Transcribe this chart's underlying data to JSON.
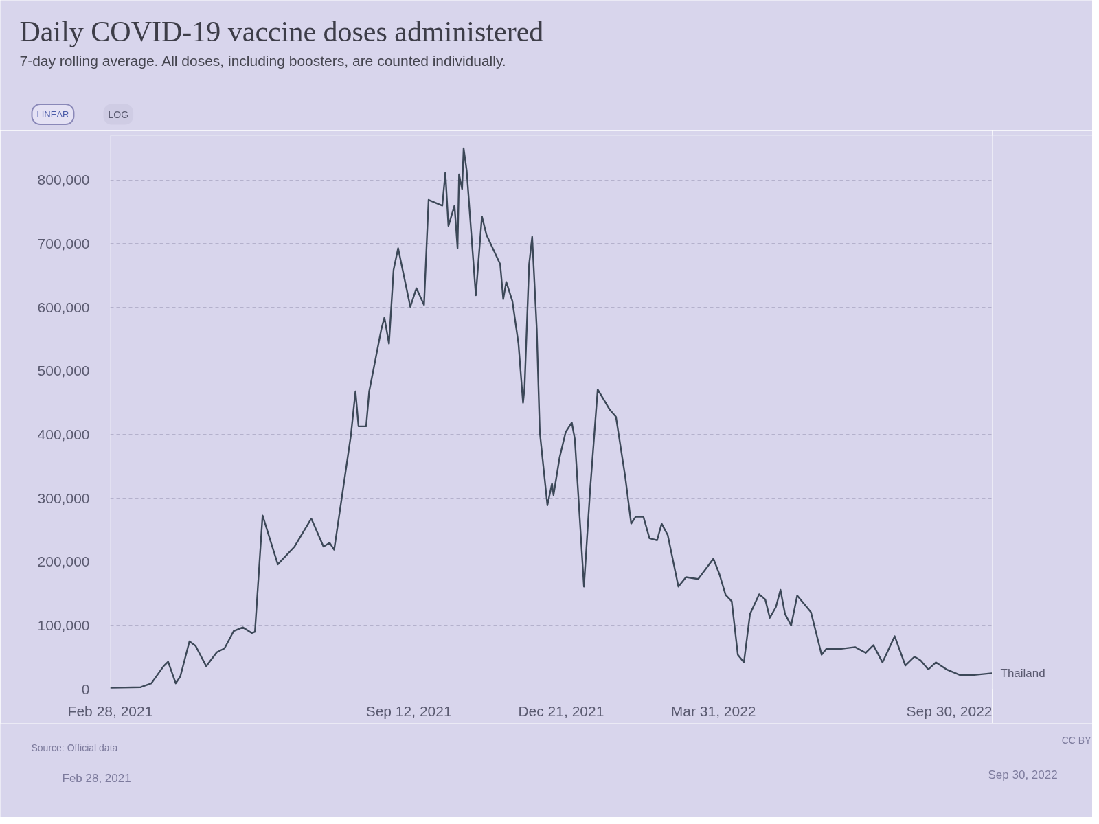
{
  "chart_data": {
    "type": "line",
    "title": "Daily COVID-19 vaccine doses administered",
    "subtitle": "7-day rolling average. All doses, including boosters, are counted individually.",
    "annotations": [
      "LINEAR",
      "LOG",
      "Source: Official data",
      "CC BY",
      "Feb 28, 2021",
      "Sep 30, 2022"
    ],
    "x": [
      "2021-02-28",
      "2021-03-20",
      "2021-03-27",
      "2021-04-04",
      "2021-04-07",
      "2021-04-12",
      "2021-04-15",
      "2021-04-21",
      "2021-04-25",
      "2021-05-02",
      "2021-05-09",
      "2021-05-14",
      "2021-05-20",
      "2021-05-26",
      "2021-06-01",
      "2021-06-03",
      "2021-06-08",
      "2021-06-18",
      "2021-06-29",
      "2021-07-10",
      "2021-07-18",
      "2021-07-22",
      "2021-07-25",
      "2021-08-05",
      "2021-08-08",
      "2021-08-10",
      "2021-08-15",
      "2021-08-17",
      "2021-08-25",
      "2021-08-27",
      "2021-08-30",
      "2021-09-02",
      "2021-09-05",
      "2021-09-13",
      "2021-09-17",
      "2021-09-22",
      "2021-09-25",
      "2021-10-04",
      "2021-10-06",
      "2021-10-08",
      "2021-10-12",
      "2021-10-14",
      "2021-10-15",
      "2021-10-17",
      "2021-10-18",
      "2021-10-20",
      "2021-10-26",
      "2021-10-30",
      "2021-11-02",
      "2021-11-11",
      "2021-11-13",
      "2021-11-15",
      "2021-11-19",
      "2021-11-23",
      "2021-11-26",
      "2021-11-27",
      "2021-11-30",
      "2021-12-02",
      "2021-12-05",
      "2021-12-07",
      "2021-12-12",
      "2021-12-15",
      "2021-12-16",
      "2021-12-20",
      "2021-12-24",
      "2021-12-28",
      "2021-12-30",
      "2022-01-05",
      "2022-01-09",
      "2022-01-14",
      "2022-01-22",
      "2022-01-26",
      "2022-02-01",
      "2022-02-05",
      "2022-02-08",
      "2022-02-13",
      "2022-02-17",
      "2022-02-22",
      "2022-02-25",
      "2022-03-01",
      "2022-03-08",
      "2022-03-13",
      "2022-03-21",
      "2022-03-31",
      "2022-04-04",
      "2022-04-08",
      "2022-04-12",
      "2022-04-16",
      "2022-04-20",
      "2022-04-24",
      "2022-04-30",
      "2022-05-04",
      "2022-05-07",
      "2022-05-11",
      "2022-05-14",
      "2022-05-17",
      "2022-05-21",
      "2022-05-25",
      "2022-06-03",
      "2022-06-10",
      "2022-06-13",
      "2022-06-22",
      "2022-07-02",
      "2022-07-09",
      "2022-07-14",
      "2022-07-20",
      "2022-07-28",
      "2022-08-04",
      "2022-08-10",
      "2022-08-14",
      "2022-08-19",
      "2022-08-24",
      "2022-08-31",
      "2022-09-09",
      "2022-09-17",
      "2022-09-30"
    ],
    "series": [
      {
        "name": "Thailand",
        "color": "#3c4858",
        "values": [
          2000,
          3000,
          9000,
          36000,
          43000,
          9000,
          20000,
          75000,
          68000,
          36000,
          58000,
          64000,
          91000,
          97000,
          88000,
          90000,
          273000,
          196000,
          224000,
          268000,
          224000,
          230000,
          219000,
          399000,
          468000,
          413000,
          413000,
          468000,
          566000,
          584000,
          543000,
          659000,
          693000,
          601000,
          630000,
          604000,
          769000,
          760000,
          812000,
          728000,
          760000,
          693000,
          809000,
          786000,
          850000,
          815000,
          619000,
          743000,
          714000,
          668000,
          613000,
          640000,
          610000,
          543000,
          450000,
          474000,
          668000,
          711000,
          566000,
          404000,
          289000,
          323000,
          305000,
          364000,
          404000,
          419000,
          393000,
          161000,
          312000,
          471000,
          439000,
          428000,
          335000,
          260000,
          271000,
          271000,
          237000,
          234000,
          260000,
          242000,
          161000,
          176000,
          173000,
          205000,
          180000,
          148000,
          138000,
          54000,
          42000,
          118000,
          149000,
          141000,
          112000,
          129000,
          156000,
          118000,
          100000,
          147000,
          121000,
          54000,
          63000,
          63000,
          66000,
          57000,
          69000,
          42000,
          83000,
          37000,
          51000,
          45000,
          31000,
          42000,
          31000,
          22000,
          22000,
          25000
        ]
      }
    ],
    "xlim": [
      "2021-02-28",
      "2022-09-30"
    ],
    "xticks": [
      {
        "value": "2021-02-28",
        "label": "Feb 28, 2021"
      },
      {
        "value": "2021-09-12",
        "label": "Sep 12, 2021"
      },
      {
        "value": "2021-12-21",
        "label": "Dec 21, 2021"
      },
      {
        "value": "2022-03-31",
        "label": "Mar 31, 2022"
      },
      {
        "value": "2022-09-30",
        "label": "Sep 30, 2022"
      }
    ],
    "ylim": [
      0,
      870000
    ],
    "yticks": [
      0,
      {
        "value": 100000,
        "label": "100,000"
      },
      {
        "value": 200000,
        "label": "200,000"
      },
      {
        "value": 300000,
        "label": "300,000"
      },
      {
        "value": 400000,
        "label": "400,000"
      },
      {
        "value": 500000,
        "label": "500,000"
      },
      {
        "value": 600000,
        "label": "600,000"
      },
      {
        "value": 700000,
        "label": "700,000"
      },
      {
        "value": 800000,
        "label": "800,000"
      }
    ],
    "grid": "y",
    "line_style": "solid"
  }
}
